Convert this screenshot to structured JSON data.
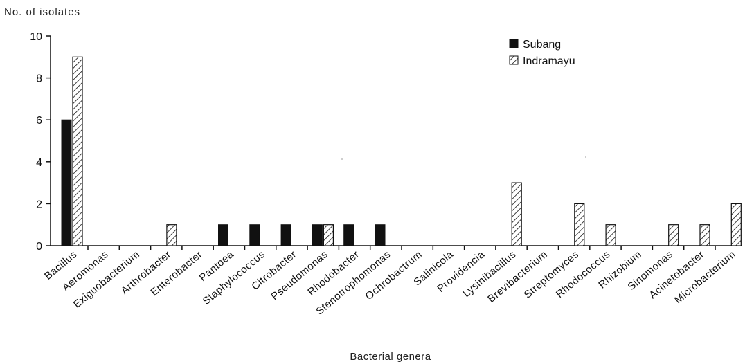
{
  "chart_data": {
    "type": "bar",
    "title": "",
    "ylabel": "No. of isolates",
    "xlabel": "Bacterial genera",
    "ylim": [
      0,
      10
    ],
    "yticks": [
      "0",
      "2",
      "4",
      "6",
      "8",
      "10"
    ],
    "grid": false,
    "legend_position": "top-right",
    "categories": [
      "Bacillus",
      "Aeromonas",
      "Exiguobacterium",
      "Arthrobacter",
      "Enterobacter",
      "Pantoea",
      "Staphylococcus",
      "Citrobacter",
      "Pseudomonas",
      "Rhodobacter",
      "Stenotrophomonas",
      "Ochrobactrum",
      "Salinicola",
      "Providencia",
      "Lysinibacillus",
      "Brevibacterium",
      "Streptomyces",
      "Rhodococcus",
      "Rhizobium",
      "Sinomonas",
      "Acinetobacter",
      "Microbacterium"
    ],
    "series": [
      {
        "name": "Subang",
        "fill": "solid",
        "color": "#111111",
        "values": [
          6,
          0,
          0,
          0,
          0,
          1,
          1,
          1,
          1,
          1,
          1,
          0,
          0,
          0,
          0,
          0,
          0,
          0,
          0,
          0,
          0,
          0
        ]
      },
      {
        "name": "Indramayu",
        "fill": "hatched",
        "color": "#111111",
        "values": [
          9,
          0,
          0,
          1,
          0,
          0,
          0,
          0,
          1,
          0,
          0,
          0,
          0,
          0,
          3,
          0,
          2,
          1,
          0,
          1,
          1,
          2
        ]
      }
    ]
  }
}
